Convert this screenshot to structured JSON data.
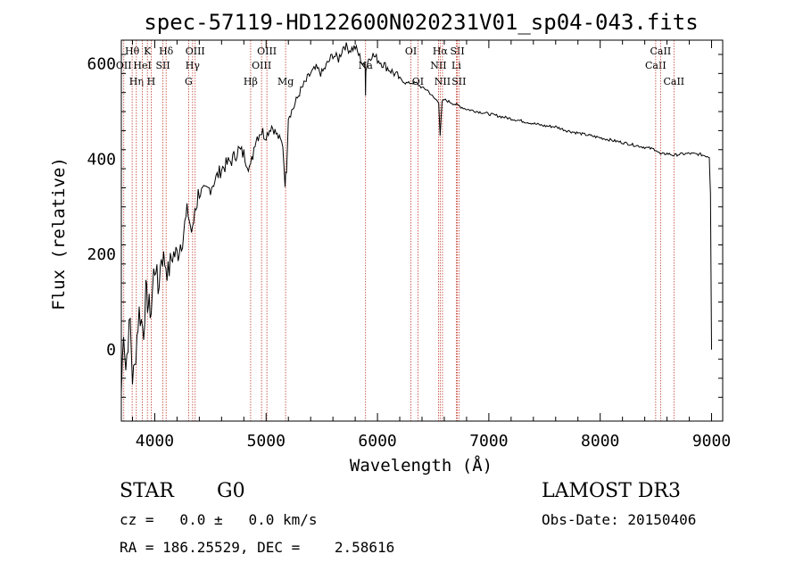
{
  "chart_data": {
    "type": "line",
    "title": "spec-57119-HD122600N020231V01_sp04-043.fits",
    "xlabel": "Wavelength (Å)",
    "ylabel": "Flux (relative)",
    "xlim": [
      3700,
      9100
    ],
    "ylim": [
      -150,
      650
    ],
    "xticks": [
      4000,
      5000,
      6000,
      7000,
      8000,
      9000
    ],
    "yticks": [
      0,
      200,
      400,
      600
    ],
    "ytick_label_top": "600",
    "series": [
      {
        "name": "spectrum",
        "x": [
          3700,
          3720,
          3740,
          3760,
          3780,
          3800,
          3820,
          3840,
          3860,
          3880,
          3900,
          3920,
          3935,
          3950,
          3968,
          3990,
          4010,
          4030,
          4060,
          4100,
          4120,
          4160,
          4200,
          4250,
          4300,
          4320,
          4340,
          4360,
          4400,
          4450,
          4500,
          4550,
          4600,
          4650,
          4700,
          4750,
          4800,
          4861,
          4900,
          4950,
          5000,
          5050,
          5100,
          5150,
          5170,
          5183,
          5200,
          5250,
          5300,
          5350,
          5400,
          5450,
          5500,
          5550,
          5600,
          5650,
          5700,
          5750,
          5800,
          5850,
          5890,
          5893,
          5896,
          5920,
          5950,
          6000,
          6050,
          6100,
          6150,
          6200,
          6250,
          6300,
          6350,
          6400,
          6450,
          6500,
          6550,
          6563,
          6580,
          6600,
          6650,
          6700,
          6750,
          6800,
          6900,
          7000,
          7100,
          7200,
          7300,
          7400,
          7500,
          7600,
          7700,
          7800,
          7900,
          8000,
          8100,
          8200,
          8300,
          8400,
          8500,
          8542,
          8600,
          8662,
          8700,
          8800,
          8900,
          8980,
          8990,
          9000
        ],
        "y": [
          -90,
          50,
          -40,
          20,
          60,
          -60,
          -40,
          30,
          80,
          60,
          40,
          120,
          100,
          90,
          80,
          160,
          180,
          120,
          200,
          180,
          160,
          200,
          200,
          240,
          290,
          260,
          240,
          300,
          330,
          330,
          340,
          360,
          380,
          390,
          400,
          420,
          410,
          380,
          440,
          460,
          450,
          470,
          450,
          430,
          350,
          380,
          490,
          510,
          540,
          560,
          580,
          590,
          580,
          600,
          620,
          610,
          640,
          630,
          635,
          610,
          590,
          540,
          590,
          610,
          620,
          610,
          600,
          590,
          580,
          570,
          560,
          560,
          560,
          550,
          545,
          530,
          520,
          450,
          520,
          525,
          520,
          515,
          510,
          505,
          500,
          495,
          490,
          485,
          480,
          475,
          470,
          468,
          460,
          455,
          450,
          445,
          440,
          435,
          430,
          425,
          420,
          410,
          412,
          408,
          410,
          412,
          410,
          405,
          330,
          0
        ]
      }
    ],
    "line_marks": [
      {
        "wl": 3722,
        "label": "OII",
        "row": 2
      },
      {
        "wl": 3797,
        "label": "Hθ",
        "row": 1
      },
      {
        "wl": 3835,
        "label": "Hη",
        "row": 3
      },
      {
        "wl": 3889,
        "label": "HeI",
        "row": 2
      },
      {
        "wl": 3934,
        "label": "K",
        "row": 1
      },
      {
        "wl": 3968,
        "label": "H",
        "row": 3
      },
      {
        "wl": 4073,
        "label": "SII",
        "row": 2
      },
      {
        "wl": 4102,
        "label": "Hδ",
        "row": 1
      },
      {
        "wl": 4304,
        "label": "G",
        "row": 3
      },
      {
        "wl": 4340,
        "label": "Hγ",
        "row": 2
      },
      {
        "wl": 4363,
        "label": "OIII",
        "row": 1
      },
      {
        "wl": 4861,
        "label": "Hβ",
        "row": 3
      },
      {
        "wl": 4959,
        "label": "OIII",
        "row": 2
      },
      {
        "wl": 5007,
        "label": "OIII",
        "row": 1
      },
      {
        "wl": 5175,
        "label": "Mg",
        "row": 3
      },
      {
        "wl": 5893,
        "label": "Na",
        "row": 2
      },
      {
        "wl": 6300,
        "label": "OI",
        "row": 1
      },
      {
        "wl": 6363,
        "label": "OI",
        "row": 3
      },
      {
        "wl": 6548,
        "label": "NII",
        "row": 2
      },
      {
        "wl": 6563,
        "label": "Hα",
        "row": 1
      },
      {
        "wl": 6584,
        "label": "NII",
        "row": 3
      },
      {
        "wl": 6708,
        "label": "Li",
        "row": 2
      },
      {
        "wl": 6717,
        "label": "SII",
        "row": 1
      },
      {
        "wl": 6731,
        "label": "SII",
        "row": 3
      },
      {
        "wl": 8498,
        "label": "CaII",
        "row": 2
      },
      {
        "wl": 8542,
        "label": "CaII",
        "row": 1
      },
      {
        "wl": 8662,
        "label": "CaII",
        "row": 3
      }
    ]
  },
  "info": {
    "object_class": "STAR",
    "subclass": "G0",
    "survey": "LAMOST DR3",
    "redshift": "cz =   0.0 ±   0.0 km/s",
    "obs_date": "Obs-Date: 20150406",
    "coords": "RA = 186.25529, DEC =    2.58616"
  },
  "colors": {
    "line_marker": "#c0392b",
    "spectrum": "#000000",
    "axes": "#000000"
  }
}
